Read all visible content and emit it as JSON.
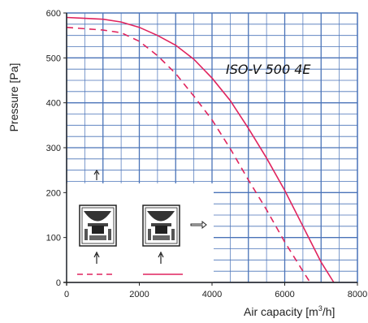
{
  "chart_data": {
    "type": "line",
    "title": "",
    "xlabel": "Air capacity [m",
    "xlabel_sup": "3",
    "xlabel_tail": "/h]",
    "ylabel": "Pressure [Pa]",
    "xlim": [
      0,
      8000
    ],
    "ylim": [
      0,
      600
    ],
    "x_ticks": [
      "0",
      "2000",
      "4000",
      "6000",
      "8000"
    ],
    "y_ticks": [
      "0",
      "100",
      "200",
      "300",
      "400",
      "500",
      "600"
    ],
    "grid": true,
    "annotation": "ISO-V 500 4E",
    "colors": {
      "curve": "#e0245e",
      "grid": "#4a73b8",
      "axis": "#222222"
    },
    "series": [
      {
        "style": "solid",
        "x": [
          0,
          500,
          1000,
          1500,
          2000,
          2500,
          3000,
          3500,
          4000,
          4500,
          5000,
          5500,
          6000,
          6500,
          7000,
          7350
        ],
        "y": [
          590,
          588,
          586,
          580,
          568,
          550,
          528,
          497,
          455,
          405,
          343,
          277,
          205,
          125,
          45,
          0
        ]
      },
      {
        "style": "dashed",
        "x": [
          0,
          500,
          1000,
          1500,
          2000,
          2500,
          3000,
          3500,
          4000,
          4500,
          5000,
          5500,
          6000,
          6500,
          6700
        ],
        "y": [
          568,
          565,
          562,
          556,
          537,
          505,
          465,
          415,
          362,
          298,
          228,
          162,
          90,
          25,
          0
        ]
      }
    ],
    "inset_icons": [
      {
        "name": "unit-diagram-dashed-icon",
        "legend_style": "dashed"
      },
      {
        "name": "unit-diagram-solid-icon",
        "legend_style": "solid"
      }
    ]
  }
}
